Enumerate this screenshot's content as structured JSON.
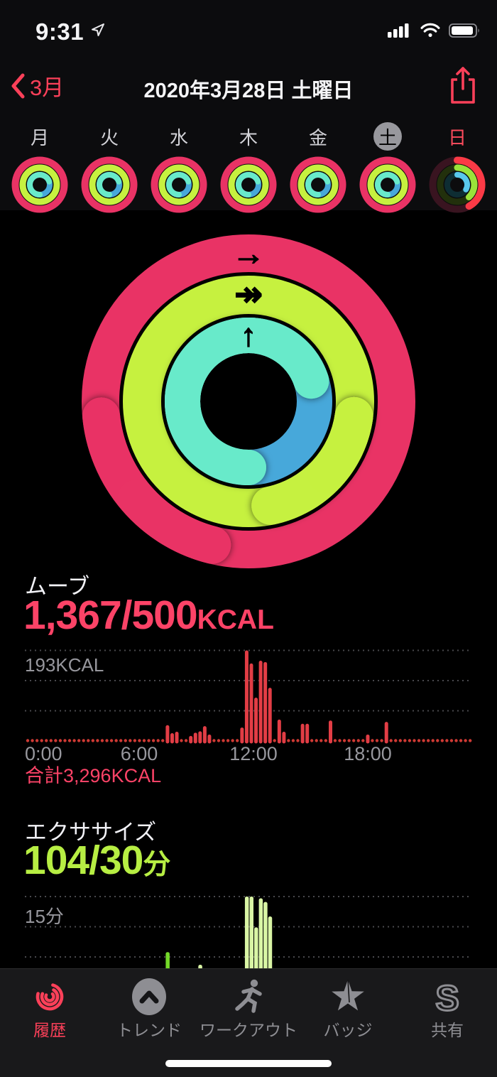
{
  "status_bar": {
    "time": "9:31"
  },
  "nav": {
    "back_label": "3月",
    "title": "2020年3月28日 土曜日"
  },
  "week": {
    "days": [
      {
        "label": "月",
        "selected": false,
        "highlight": "normal",
        "rings": {
          "move": 1,
          "exercise": 1,
          "stand": 1
        }
      },
      {
        "label": "火",
        "selected": false,
        "highlight": "normal",
        "rings": {
          "move": 1,
          "exercise": 1,
          "stand": 1
        }
      },
      {
        "label": "水",
        "selected": false,
        "highlight": "normal",
        "rings": {
          "move": 1,
          "exercise": 1,
          "stand": 1
        }
      },
      {
        "label": "木",
        "selected": false,
        "highlight": "normal",
        "rings": {
          "move": 1,
          "exercise": 1,
          "stand": 1
        }
      },
      {
        "label": "金",
        "selected": false,
        "highlight": "normal",
        "rings": {
          "move": 1,
          "exercise": 1,
          "stand": 1
        }
      },
      {
        "label": "土",
        "selected": true,
        "highlight": "normal",
        "rings": {
          "move": 1,
          "exercise": 1,
          "stand": 1
        }
      },
      {
        "label": "日",
        "selected": false,
        "highlight": "red",
        "rings": {
          "move": 0.42,
          "exercise": 0.38,
          "stand": 0.33
        }
      }
    ]
  },
  "activity": {
    "move_value": 1367,
    "move_goal": 500,
    "exercise_value": 104,
    "exercise_goal": 30,
    "stand_overflow_deg": 72
  },
  "ring_icons": {
    "move_arrow": "→",
    "exercise_arrow": "↠",
    "stand_arrow": "↑"
  },
  "move_section": {
    "label": "ムーブ",
    "display": "1,367/500",
    "unit": "KCAL",
    "ymax_label": "193KCAL",
    "total_label": "合計",
    "total_value": "3,296KCAL"
  },
  "exercise_section": {
    "label": "エクササイズ",
    "display": "104/30",
    "unit": "分",
    "ymax_label": "15分"
  },
  "chart_data": [
    {
      "type": "bar",
      "title": "ムーブ",
      "ylabel": "KCAL",
      "slot_minutes": 15,
      "x_range_hours": [
        0,
        24
      ],
      "ylim": [
        0,
        193
      ],
      "grid": true,
      "x_ticks": [
        "0:00",
        "6:00",
        "12:00",
        "18:00"
      ],
      "total": "3,296KCAL",
      "bars": [
        [
          30,
          33
        ],
        [
          31,
          16
        ],
        [
          32,
          19
        ],
        [
          35,
          10
        ],
        [
          36,
          17
        ],
        [
          37,
          20
        ],
        [
          38,
          31
        ],
        [
          39,
          13
        ],
        [
          46,
          28
        ],
        [
          47,
          193
        ],
        [
          48,
          165
        ],
        [
          49,
          92
        ],
        [
          50,
          171
        ],
        [
          51,
          168
        ],
        [
          52,
          113
        ],
        [
          54,
          45
        ],
        [
          55,
          19
        ],
        [
          59,
          36
        ],
        [
          60,
          36
        ],
        [
          65,
          43
        ],
        [
          73,
          13
        ],
        [
          77,
          40
        ]
      ]
    },
    {
      "type": "bar",
      "title": "エクササイズ",
      "ylabel": "分",
      "slot_minutes": 15,
      "x_range_hours": [
        0,
        24
      ],
      "ylim": [
        0,
        15
      ],
      "grid": true,
      "x_ticks": [
        "0:00",
        "6:00",
        "12:00",
        "18:00"
      ],
      "bars": [
        [
          30,
          5.8
        ],
        [
          37,
          3.7
        ],
        [
          47,
          15
        ],
        [
          48,
          15
        ],
        [
          49,
          9.9
        ],
        [
          50,
          14.7
        ],
        [
          51,
          14.1
        ],
        [
          52,
          11.7
        ]
      ]
    }
  ],
  "tab_bar": {
    "items": [
      {
        "label": "履歴",
        "active": true
      },
      {
        "label": "トレンド",
        "active": false
      },
      {
        "label": "ワークアウト",
        "active": false
      },
      {
        "label": "バッジ",
        "active": false
      },
      {
        "label": "共有",
        "active": false
      }
    ]
  },
  "colors": {
    "accent_red": "#fb4059",
    "move_ring": "#e93365",
    "exercise_ring": "#c6f13f",
    "stand_blue": "#47a8da",
    "stand_mint": "#68eaca",
    "move_text": "#fc4367",
    "exercise_text": "#b7ee43",
    "bar_red": "#e23d45",
    "dot_red": "#cf3a34",
    "bar_green": "#d9f5a5",
    "bar_green_bright": "#74d829",
    "axis_gray": "#97979d",
    "grid_gray": "#49494d",
    "tab_inactive": "#8e8e93",
    "week_move_track": "#391420",
    "week_exercise_track": "#22300c",
    "week_stand_track": "#0e2d33",
    "week_move_arc": "#fb3a46",
    "week_exercise_arc": "#9ae23a",
    "week_stand_arc": "#59c8ec"
  }
}
